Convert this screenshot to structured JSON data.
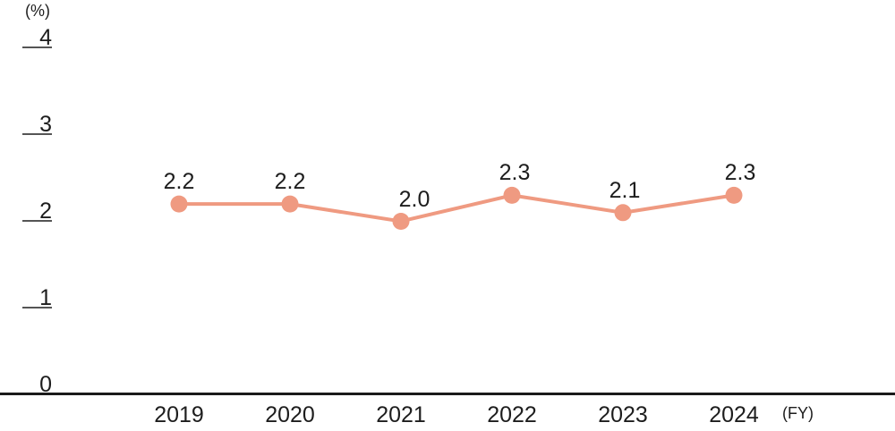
{
  "chart_data": {
    "type": "line",
    "ylabel": "(%)",
    "xlabel": "(FY)",
    "categories": [
      "2019",
      "2020",
      "2021",
      "2022",
      "2023",
      "2024"
    ],
    "series": [
      {
        "name": "",
        "values": [
          2.2,
          2.2,
          2.0,
          2.3,
          2.1,
          2.3
        ],
        "point_labels": [
          "2.2",
          "2.2",
          "2.0",
          "2.3",
          "2.1",
          "2.3"
        ]
      }
    ],
    "y_ticks": [
      4,
      3,
      2,
      1,
      0
    ],
    "ylim": [
      0,
      4
    ],
    "grid": false,
    "legend_position": "none",
    "colors": {
      "line": "#EF9A81",
      "marker": "#EF9A81",
      "axis": "#1A1A1A",
      "tick_mark": "#555555",
      "text": "#1D1D1D",
      "background": "#FFFFFF"
    }
  }
}
